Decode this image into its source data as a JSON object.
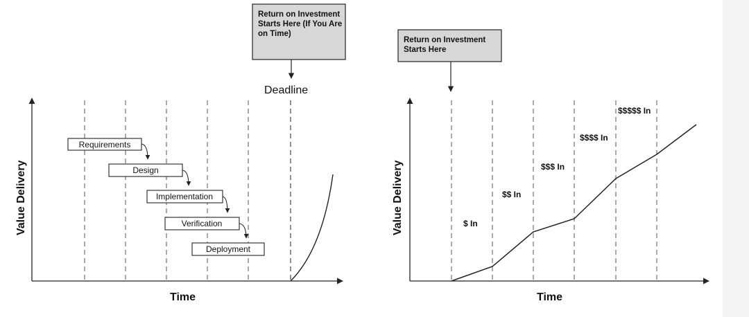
{
  "left_diagram": {
    "callout": {
      "lines": [
        "Return on Investment",
        "Starts Here (If You Are",
        "on Time)"
      ]
    },
    "deadline_label": "Deadline",
    "y_axis_label": "Value Delivery",
    "x_axis_label": "Time",
    "phases": [
      "Requirements",
      "Design",
      "Implementation",
      "Verification",
      "Deployment"
    ]
  },
  "right_diagram": {
    "callout": {
      "lines": [
        "Return on Investment",
        "Starts Here"
      ]
    },
    "y_axis_label": "Value Delivery",
    "x_axis_label": "Time",
    "increments": [
      "$ In",
      "$$ In",
      "$$$ In",
      "$$$$ In",
      "$$$$$ In"
    ]
  },
  "colors": {
    "callout_fill": "#d7d7d7",
    "stroke": "#222222",
    "background_strip": "#f4f4f4"
  }
}
